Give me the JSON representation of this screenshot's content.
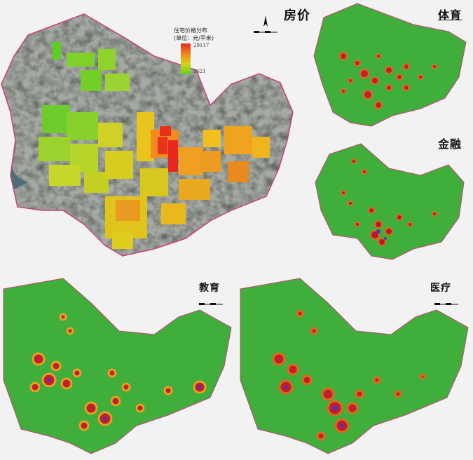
{
  "panels": {
    "price": {
      "title": "房价"
    },
    "sports": {
      "title": "体育"
    },
    "finance": {
      "title": "金融"
    },
    "education": {
      "title": "教育"
    },
    "medical": {
      "title": "医疗"
    }
  },
  "legend": {
    "title": "住宅价格分布",
    "unit": "(单位：元/平米)",
    "max": "29117",
    "min": "5621"
  },
  "colors": {
    "heat_base": "#3fae3a",
    "heat_low": "#d8cf2a",
    "heat_mid": "#e0501c",
    "heat_high": "#b8182a",
    "heat_core": "#6a2aa8",
    "satellite": "#5b5f58",
    "boundary": "#c8407a"
  }
}
